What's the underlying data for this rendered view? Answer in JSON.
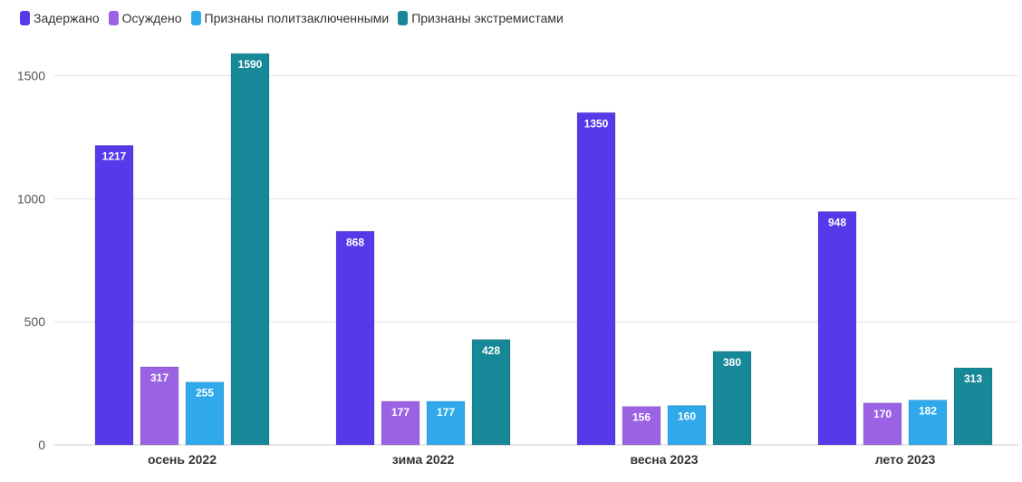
{
  "chart_data": {
    "type": "bar",
    "title": "",
    "xlabel": "",
    "ylabel": "",
    "categories": [
      "осень 2022",
      "зима 2022",
      "весна 2023",
      "лето 2023"
    ],
    "series": [
      {
        "name": "Задержано",
        "color": "#5639e8",
        "values": [
          1217,
          868,
          1350,
          948
        ]
      },
      {
        "name": "Осуждено",
        "color": "#9b62e3",
        "values": [
          317,
          177,
          156,
          170
        ]
      },
      {
        "name": "Признаны политзаключенными",
        "color": "#2fa9ea",
        "values": [
          255,
          177,
          160,
          182
        ]
      },
      {
        "name": "Признаны экстремистами",
        "color": "#168897",
        "values": [
          1590,
          428,
          380,
          313
        ]
      }
    ],
    "ylim": [
      0,
      1600
    ],
    "yticks": [
      0,
      500,
      1000,
      1500
    ],
    "grid": true,
    "legend_position": "top-left"
  }
}
